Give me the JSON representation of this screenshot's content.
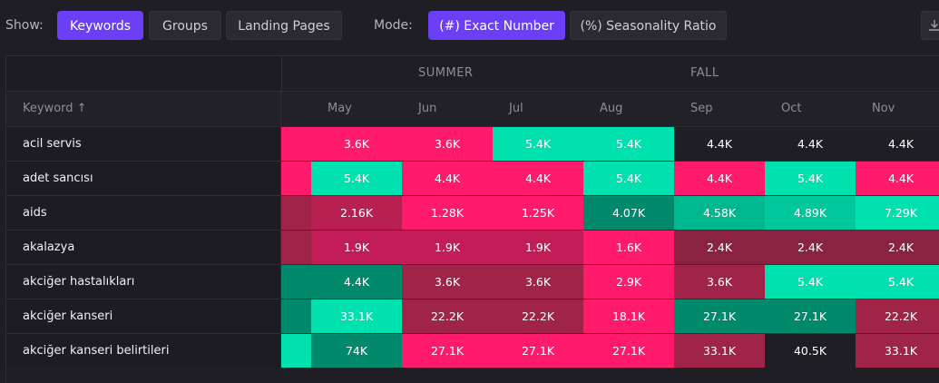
{
  "toolbar": {
    "show_label": "Show:",
    "show_buttons": [
      "Keywords",
      "Groups",
      "Landing Pages"
    ],
    "mode_label": "Mode:",
    "mode_buttons": [
      "(#) Exact Number",
      "(%) Seasonality Ratio"
    ]
  },
  "seasons": [
    "SUMMER",
    "FALL"
  ],
  "table": {
    "keyword_header": "Keyword ↑",
    "months": [
      "May",
      "Jun",
      "Jul",
      "Aug",
      "Sep",
      "Oct",
      "Nov"
    ],
    "rows": [
      {
        "keyword": "acil servis",
        "cells": [
          "3.6K",
          "3.6K",
          "5.4K",
          "5.4K",
          "4.4K",
          "4.4K",
          "4.4K"
        ]
      },
      {
        "keyword": "adet sancısı",
        "cells": [
          "5.4K",
          "4.4K",
          "4.4K",
          "5.4K",
          "4.4K",
          "5.4K",
          "4.4K"
        ]
      },
      {
        "keyword": "aids",
        "cells": [
          "2.16K",
          "1.28K",
          "1.25K",
          "4.07K",
          "4.58K",
          "4.89K",
          "7.29K"
        ]
      },
      {
        "keyword": "akalazya",
        "cells": [
          "1.9K",
          "1.9K",
          "1.9K",
          "1.6K",
          "2.4K",
          "2.4K",
          "2.4K"
        ]
      },
      {
        "keyword": "akciğer hastalıkları",
        "cells": [
          "4.4K",
          "3.6K",
          "3.6K",
          "2.9K",
          "3.6K",
          "5.4K",
          "5.4K"
        ]
      },
      {
        "keyword": "akciğer kanseri",
        "cells": [
          "33.1K",
          "22.2K",
          "22.2K",
          "18.1K",
          "27.1K",
          "27.1K",
          "22.2K"
        ]
      },
      {
        "keyword": "akciğer kanseri belirtileri",
        "cells": [
          "74K",
          "27.1K",
          "27.1K",
          "27.1K",
          "33.1K",
          "40.5K",
          "33.1K"
        ]
      }
    ]
  },
  "colors": {
    "accent": "#6b3ff5",
    "hot_pink": "#ff1a6c",
    "dark_rose": "#a02448",
    "mid_rose": "#b72051",
    "teal": "#00e1b0",
    "dark_teal": "#008a6b",
    "neutral": "#1f1e25"
  }
}
